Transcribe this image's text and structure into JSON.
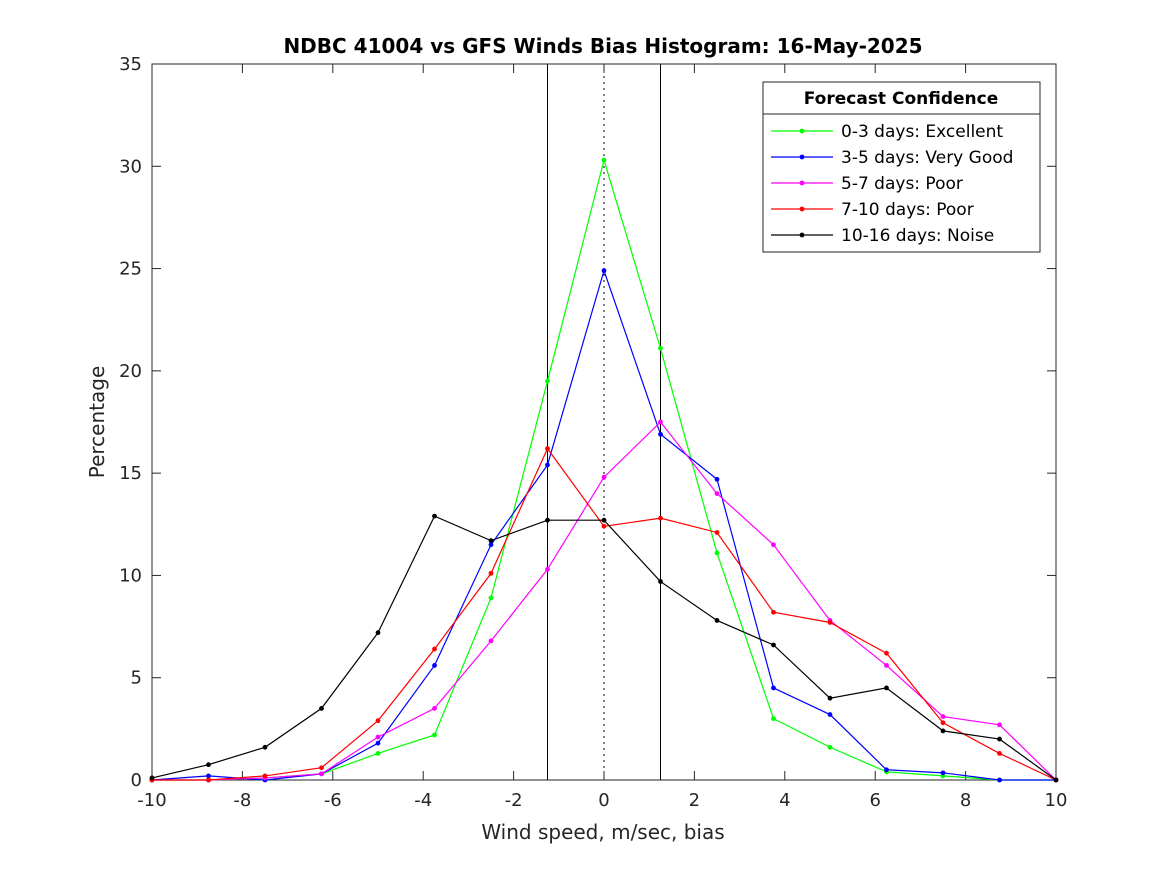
{
  "chart_data": {
    "type": "line",
    "title": "NDBC 41004 vs GFS Winds Bias Histogram: 16-May-2025",
    "xlabel": "Wind speed, m/sec, bias",
    "ylabel": "Percentage",
    "xlim": [
      -10,
      10
    ],
    "ylim": [
      0,
      35
    ],
    "xticks": [
      -10,
      -8,
      -6,
      -4,
      -2,
      0,
      2,
      4,
      6,
      8,
      10
    ],
    "yticks": [
      0,
      5,
      10,
      15,
      20,
      25,
      30,
      35
    ],
    "x": [
      -10,
      -8.75,
      -7.5,
      -6.25,
      -5,
      -3.75,
      -2.5,
      -1.25,
      0,
      1.25,
      2.5,
      3.75,
      5,
      6.25,
      7.5,
      8.75,
      10
    ],
    "reference_lines": {
      "solid": [
        -1.25,
        1.25
      ],
      "dotted": [
        0
      ]
    },
    "grid": false,
    "legend": {
      "title": "Forecast Confidence",
      "position": "top-right"
    },
    "series": [
      {
        "name": "0-3 days: Excellent",
        "color": "#00ff00",
        "values": [
          0,
          0,
          0.1,
          0.3,
          1.3,
          2.2,
          8.9,
          19.5,
          30.3,
          21.1,
          11.1,
          3.0,
          1.6,
          0.4,
          0.2,
          0,
          0
        ]
      },
      {
        "name": "3-5 days: Very Good",
        "color": "#0000ff",
        "values": [
          0,
          0.2,
          0,
          0.3,
          1.8,
          5.6,
          11.5,
          15.4,
          24.9,
          16.9,
          14.7,
          4.5,
          3.2,
          0.5,
          0.35,
          0,
          0
        ]
      },
      {
        "name": "5-7 days: Poor",
        "color": "#ff00ff",
        "values": [
          0,
          0,
          0.1,
          0.3,
          2.1,
          3.5,
          6.8,
          10.3,
          14.8,
          17.5,
          14.0,
          11.5,
          7.8,
          5.6,
          3.1,
          2.7,
          0
        ]
      },
      {
        "name": "7-10 days: Poor",
        "color": "#ff0000",
        "values": [
          0,
          0,
          0.2,
          0.6,
          2.9,
          6.4,
          10.1,
          16.2,
          12.4,
          12.8,
          12.1,
          8.2,
          7.7,
          6.2,
          2.8,
          1.3,
          0
        ]
      },
      {
        "name": "10-16 days: Noise",
        "color": "#000000",
        "values": [
          0.1,
          0.75,
          1.6,
          3.5,
          7.2,
          12.9,
          11.7,
          12.7,
          12.7,
          9.7,
          7.8,
          6.6,
          4.0,
          4.5,
          2.4,
          2.0,
          0
        ]
      }
    ]
  }
}
